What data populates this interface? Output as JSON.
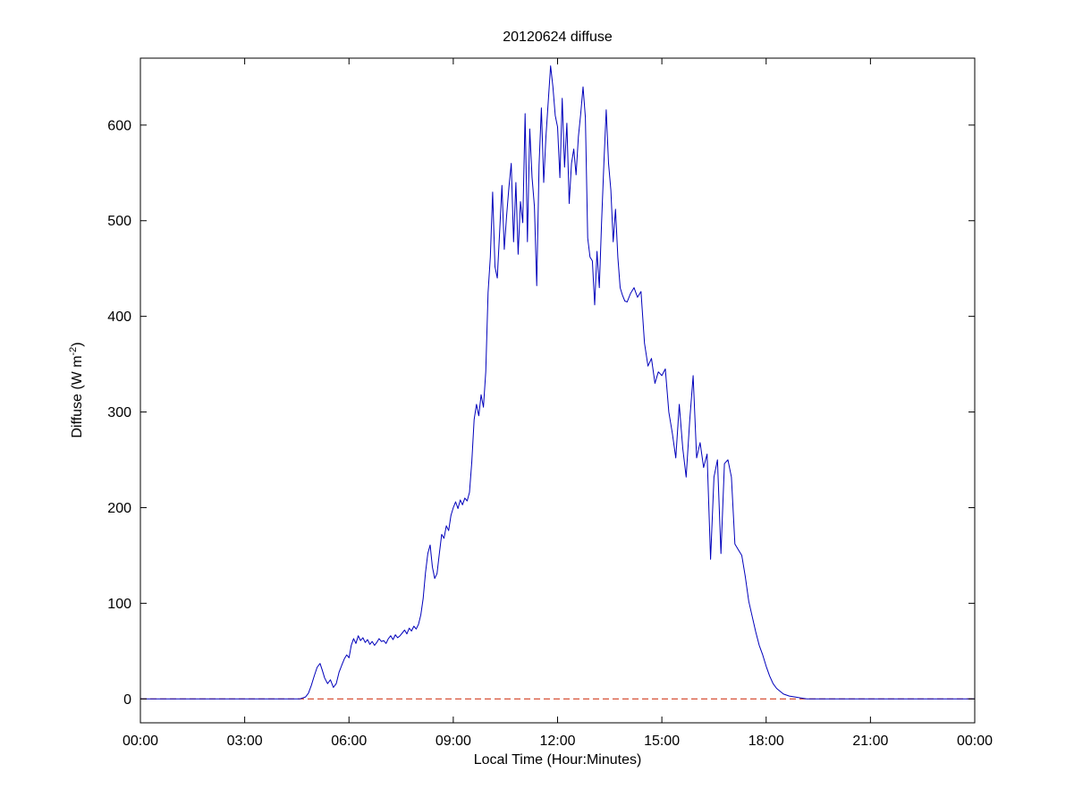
{
  "window": {
    "background": "#ffffff"
  },
  "figure": {
    "title": "20120624 diffuse",
    "xlabel": "Local Time (Hour:Minutes)",
    "ylabel_prefix": "Diffuse (W m",
    "ylabel_sup": "-2",
    "ylabel_suffix": ")"
  },
  "chart_data": {
    "type": "line",
    "title": "20120624 diffuse",
    "xlabel": "Local Time (Hour:Minutes)",
    "ylabel": "Diffuse (W m^-2)",
    "x_unit": "minutes since 00:00 local time",
    "xlim": [
      0,
      1440
    ],
    "ylim": [
      -25,
      670
    ],
    "grid": false,
    "legend": null,
    "x_ticks": [
      {
        "minutes": 0,
        "label": "00:00"
      },
      {
        "minutes": 180,
        "label": "03:00"
      },
      {
        "minutes": 360,
        "label": "06:00"
      },
      {
        "minutes": 540,
        "label": "09:00"
      },
      {
        "minutes": 720,
        "label": "12:00"
      },
      {
        "minutes": 900,
        "label": "15:00"
      },
      {
        "minutes": 1080,
        "label": "18:00"
      },
      {
        "minutes": 1260,
        "label": "21:00"
      },
      {
        "minutes": 1440,
        "label": "00:00"
      }
    ],
    "y_ticks": [
      0,
      100,
      200,
      300,
      400,
      500,
      600
    ],
    "axis_color": "#000000",
    "series": [
      {
        "name": "diffuse irradiance",
        "color": "#0000bb",
        "style": "solid",
        "points": [
          [
            0,
            0
          ],
          [
            30,
            0
          ],
          [
            60,
            0
          ],
          [
            90,
            0
          ],
          [
            120,
            0
          ],
          [
            150,
            0
          ],
          [
            180,
            0
          ],
          [
            210,
            0
          ],
          [
            240,
            0
          ],
          [
            260,
            0
          ],
          [
            275,
            0
          ],
          [
            285,
            2
          ],
          [
            290,
            6
          ],
          [
            295,
            14
          ],
          [
            300,
            24
          ],
          [
            305,
            33
          ],
          [
            310,
            37
          ],
          [
            314,
            30
          ],
          [
            318,
            22
          ],
          [
            323,
            16
          ],
          [
            328,
            20
          ],
          [
            333,
            12
          ],
          [
            338,
            16
          ],
          [
            343,
            28
          ],
          [
            348,
            36
          ],
          [
            352,
            42
          ],
          [
            356,
            46
          ],
          [
            360,
            43
          ],
          [
            364,
            56
          ],
          [
            368,
            63
          ],
          [
            372,
            58
          ],
          [
            376,
            66
          ],
          [
            380,
            61
          ],
          [
            384,
            64
          ],
          [
            388,
            59
          ],
          [
            392,
            62
          ],
          [
            396,
            57
          ],
          [
            400,
            60
          ],
          [
            404,
            56
          ],
          [
            408,
            59
          ],
          [
            412,
            63
          ],
          [
            416,
            60
          ],
          [
            420,
            61
          ],
          [
            424,
            58
          ],
          [
            428,
            63
          ],
          [
            432,
            66
          ],
          [
            436,
            62
          ],
          [
            440,
            67
          ],
          [
            444,
            64
          ],
          [
            448,
            66
          ],
          [
            452,
            69
          ],
          [
            456,
            72
          ],
          [
            460,
            68
          ],
          [
            464,
            74
          ],
          [
            468,
            71
          ],
          [
            472,
            76
          ],
          [
            476,
            73
          ],
          [
            480,
            78
          ],
          [
            484,
            88
          ],
          [
            488,
            105
          ],
          [
            492,
            132
          ],
          [
            496,
            152
          ],
          [
            500,
            161
          ],
          [
            504,
            138
          ],
          [
            508,
            126
          ],
          [
            512,
            131
          ],
          [
            516,
            152
          ],
          [
            520,
            172
          ],
          [
            524,
            168
          ],
          [
            528,
            181
          ],
          [
            532,
            176
          ],
          [
            536,
            192
          ],
          [
            540,
            200
          ],
          [
            544,
            206
          ],
          [
            548,
            199
          ],
          [
            552,
            208
          ],
          [
            556,
            203
          ],
          [
            560,
            210
          ],
          [
            564,
            207
          ],
          [
            568,
            216
          ],
          [
            572,
            248
          ],
          [
            576,
            292
          ],
          [
            580,
            308
          ],
          [
            584,
            296
          ],
          [
            588,
            318
          ],
          [
            592,
            305
          ],
          [
            596,
            342
          ],
          [
            600,
            425
          ],
          [
            604,
            462
          ],
          [
            608,
            530
          ],
          [
            612,
            452
          ],
          [
            616,
            440
          ],
          [
            620,
            488
          ],
          [
            624,
            537
          ],
          [
            628,
            470
          ],
          [
            632,
            505
          ],
          [
            636,
            535
          ],
          [
            640,
            560
          ],
          [
            644,
            478
          ],
          [
            648,
            540
          ],
          [
            652,
            465
          ],
          [
            656,
            520
          ],
          [
            660,
            498
          ],
          [
            664,
            612
          ],
          [
            668,
            478
          ],
          [
            672,
            596
          ],
          [
            676,
            545
          ],
          [
            680,
            515
          ],
          [
            684,
            432
          ],
          [
            688,
            558
          ],
          [
            692,
            618
          ],
          [
            696,
            540
          ],
          [
            700,
            588
          ],
          [
            704,
            625
          ],
          [
            708,
            662
          ],
          [
            712,
            640
          ],
          [
            716,
            610
          ],
          [
            720,
            598
          ],
          [
            724,
            545
          ],
          [
            728,
            628
          ],
          [
            732,
            556
          ],
          [
            736,
            602
          ],
          [
            740,
            518
          ],
          [
            744,
            560
          ],
          [
            748,
            575
          ],
          [
            752,
            548
          ],
          [
            756,
            588
          ],
          [
            760,
            612
          ],
          [
            764,
            640
          ],
          [
            768,
            608
          ],
          [
            772,
            482
          ],
          [
            776,
            462
          ],
          [
            780,
            458
          ],
          [
            784,
            412
          ],
          [
            788,
            468
          ],
          [
            792,
            430
          ],
          [
            796,
            498
          ],
          [
            800,
            560
          ],
          [
            804,
            616
          ],
          [
            808,
            560
          ],
          [
            812,
            532
          ],
          [
            816,
            478
          ],
          [
            820,
            512
          ],
          [
            824,
            462
          ],
          [
            828,
            430
          ],
          [
            832,
            422
          ],
          [
            836,
            416
          ],
          [
            840,
            415
          ],
          [
            846,
            424
          ],
          [
            852,
            430
          ],
          [
            858,
            420
          ],
          [
            864,
            426
          ],
          [
            870,
            372
          ],
          [
            876,
            348
          ],
          [
            882,
            356
          ],
          [
            888,
            330
          ],
          [
            894,
            342
          ],
          [
            900,
            338
          ],
          [
            906,
            345
          ],
          [
            912,
            300
          ],
          [
            918,
            278
          ],
          [
            924,
            252
          ],
          [
            930,
            308
          ],
          [
            936,
            262
          ],
          [
            942,
            232
          ],
          [
            948,
            290
          ],
          [
            954,
            338
          ],
          [
            960,
            252
          ],
          [
            966,
            268
          ],
          [
            972,
            242
          ],
          [
            978,
            256
          ],
          [
            984,
            146
          ],
          [
            990,
            232
          ],
          [
            996,
            250
          ],
          [
            1002,
            152
          ],
          [
            1008,
            246
          ],
          [
            1014,
            250
          ],
          [
            1020,
            232
          ],
          [
            1026,
            162
          ],
          [
            1032,
            156
          ],
          [
            1038,
            150
          ],
          [
            1044,
            128
          ],
          [
            1050,
            102
          ],
          [
            1056,
            86
          ],
          [
            1062,
            70
          ],
          [
            1068,
            56
          ],
          [
            1074,
            46
          ],
          [
            1080,
            34
          ],
          [
            1086,
            24
          ],
          [
            1092,
            16
          ],
          [
            1098,
            11
          ],
          [
            1104,
            8
          ],
          [
            1110,
            5
          ],
          [
            1120,
            3
          ],
          [
            1130,
            2
          ],
          [
            1140,
            1
          ],
          [
            1150,
            0
          ],
          [
            1160,
            0
          ],
          [
            1170,
            0
          ],
          [
            1200,
            0
          ],
          [
            1230,
            0
          ],
          [
            1260,
            0
          ],
          [
            1290,
            0
          ],
          [
            1320,
            0
          ],
          [
            1350,
            0
          ],
          [
            1380,
            0
          ],
          [
            1410,
            0
          ],
          [
            1440,
            0
          ]
        ]
      },
      {
        "name": "zero reference line",
        "color": "#cc2200",
        "style": "dashed",
        "points": [
          [
            0,
            0
          ],
          [
            1440,
            0
          ]
        ]
      }
    ]
  }
}
